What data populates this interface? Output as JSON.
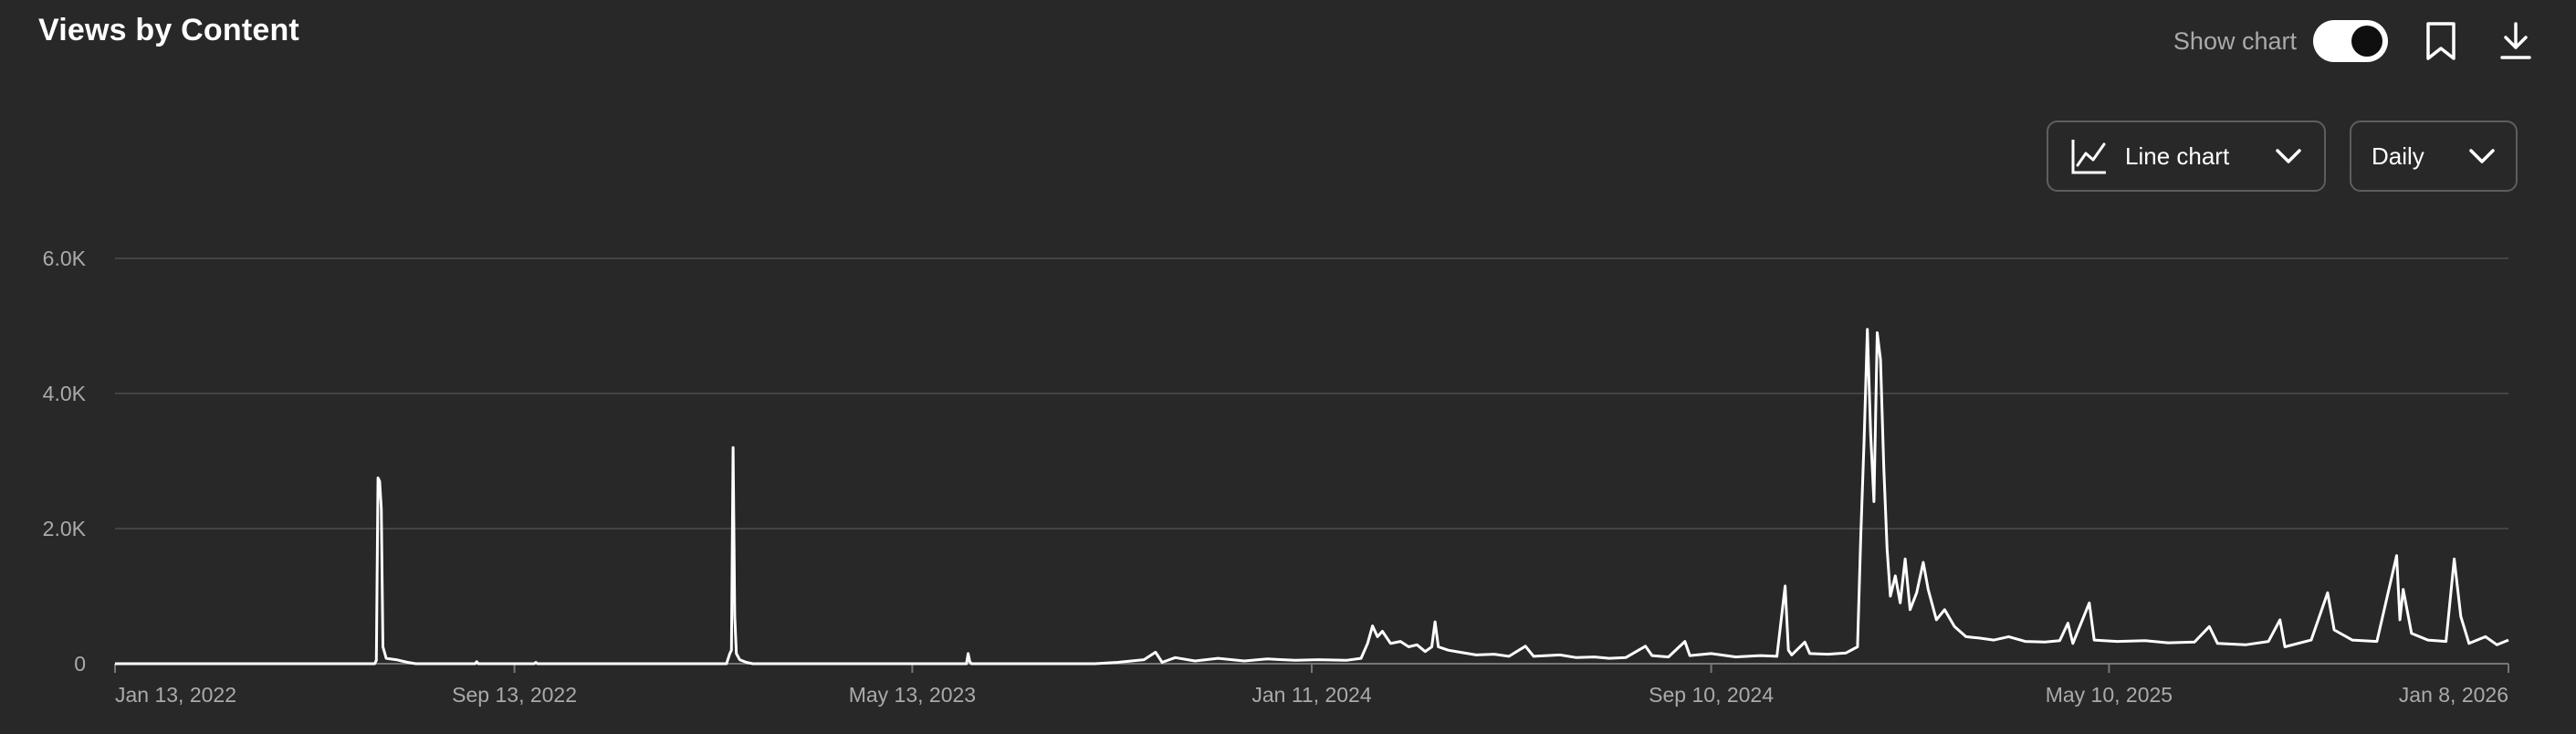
{
  "header": {
    "title": "Views by Content",
    "show_chart_label": "Show chart",
    "show_chart_on": true
  },
  "controls": {
    "chart_type": "Line chart",
    "period": "Daily"
  },
  "icons": {
    "bookmark": "bookmark-icon",
    "download": "download-icon",
    "line_chart": "line-chart-icon",
    "chevron": "chevron-down-icon"
  },
  "colors": {
    "background": "#282828",
    "line": "#ffffff",
    "grid": "#444444",
    "muted_text": "#aaaaaa"
  },
  "chart_data": {
    "type": "line",
    "title": "Views by Content",
    "xlabel": "",
    "ylabel": "",
    "x_range": [
      "2022-01-13",
      "2026-01-08"
    ],
    "ylim": [
      0,
      6000
    ],
    "y_ticks": [
      "6.0K",
      "4.0K",
      "2.0K",
      "0"
    ],
    "y_tick_values": [
      6000,
      4000,
      2000,
      0
    ],
    "x_tick_labels": [
      "Jan 13, 2022",
      "Sep 13, 2022",
      "May 13, 2023",
      "Jan 11, 2024",
      "Sep 10, 2024",
      "May 10, 2025",
      "Jan 8, 2026"
    ],
    "x_tick_dates": [
      "2022-01-13",
      "2022-09-13",
      "2023-05-13",
      "2024-01-11",
      "2024-09-10",
      "2025-05-10",
      "2026-01-08"
    ],
    "grid": true,
    "legend": "none",
    "series": [
      {
        "values": [
          [
            "2022-01-13",
            0
          ],
          [
            "2022-06-20",
            0
          ],
          [
            "2022-06-21",
            50
          ],
          [
            "2022-06-22",
            2750
          ],
          [
            "2022-06-23",
            2700
          ],
          [
            "2022-06-24",
            2300
          ],
          [
            "2022-06-25",
            250
          ],
          [
            "2022-06-27",
            80
          ],
          [
            "2022-07-03",
            60
          ],
          [
            "2022-07-10",
            20
          ],
          [
            "2022-07-15",
            0
          ],
          [
            "2022-08-20",
            0
          ],
          [
            "2022-08-21",
            30
          ],
          [
            "2022-08-22",
            0
          ],
          [
            "2022-09-25",
            0
          ],
          [
            "2022-09-26",
            20
          ],
          [
            "2022-09-27",
            0
          ],
          [
            "2023-01-20",
            0
          ],
          [
            "2023-01-22",
            150
          ],
          [
            "2023-01-23",
            200
          ],
          [
            "2023-01-24",
            3200
          ],
          [
            "2023-01-25",
            700
          ],
          [
            "2023-01-26",
            150
          ],
          [
            "2023-01-28",
            60
          ],
          [
            "2023-02-01",
            20
          ],
          [
            "2023-02-05",
            0
          ],
          [
            "2023-06-15",
            0
          ],
          [
            "2023-06-16",
            150
          ],
          [
            "2023-06-17",
            30
          ],
          [
            "2023-06-18",
            0
          ],
          [
            "2023-09-01",
            0
          ],
          [
            "2023-09-15",
            20
          ],
          [
            "2023-10-01",
            60
          ],
          [
            "2023-10-08",
            170
          ],
          [
            "2023-10-12",
            20
          ],
          [
            "2023-10-20",
            90
          ],
          [
            "2023-11-01",
            40
          ],
          [
            "2023-11-15",
            80
          ],
          [
            "2023-12-01",
            40
          ],
          [
            "2023-12-15",
            70
          ],
          [
            "2024-01-01",
            50
          ],
          [
            "2024-01-15",
            60
          ],
          [
            "2024-02-01",
            50
          ],
          [
            "2024-02-10",
            80
          ],
          [
            "2024-02-14",
            300
          ],
          [
            "2024-02-17",
            560
          ],
          [
            "2024-02-20",
            400
          ],
          [
            "2024-02-23",
            480
          ],
          [
            "2024-02-28",
            300
          ],
          [
            "2024-03-05",
            330
          ],
          [
            "2024-03-10",
            250
          ],
          [
            "2024-03-15",
            280
          ],
          [
            "2024-03-20",
            180
          ],
          [
            "2024-03-24",
            250
          ],
          [
            "2024-03-26",
            620
          ],
          [
            "2024-03-28",
            250
          ],
          [
            "2024-04-03",
            200
          ],
          [
            "2024-04-10",
            170
          ],
          [
            "2024-04-20",
            130
          ],
          [
            "2024-05-01",
            140
          ],
          [
            "2024-05-10",
            110
          ],
          [
            "2024-05-20",
            260
          ],
          [
            "2024-05-25",
            110
          ],
          [
            "2024-06-10",
            130
          ],
          [
            "2024-06-20",
            90
          ],
          [
            "2024-07-01",
            100
          ],
          [
            "2024-07-10",
            80
          ],
          [
            "2024-07-20",
            90
          ],
          [
            "2024-08-01",
            260
          ],
          [
            "2024-08-05",
            120
          ],
          [
            "2024-08-15",
            100
          ],
          [
            "2024-08-25",
            330
          ],
          [
            "2024-08-28",
            120
          ],
          [
            "2024-09-10",
            150
          ],
          [
            "2024-09-25",
            100
          ],
          [
            "2024-10-10",
            120
          ],
          [
            "2024-10-20",
            110
          ],
          [
            "2024-10-25",
            1150
          ],
          [
            "2024-10-27",
            200
          ],
          [
            "2024-10-29",
            130
          ],
          [
            "2024-11-06",
            320
          ],
          [
            "2024-11-09",
            150
          ],
          [
            "2024-11-20",
            140
          ],
          [
            "2024-12-01",
            160
          ],
          [
            "2024-12-08",
            250
          ],
          [
            "2024-12-10",
            1900
          ],
          [
            "2024-12-12",
            3300
          ],
          [
            "2024-12-14",
            4950
          ],
          [
            "2024-12-16",
            3400
          ],
          [
            "2024-12-18",
            2400
          ],
          [
            "2024-12-20",
            4900
          ],
          [
            "2024-12-22",
            4500
          ],
          [
            "2024-12-24",
            2900
          ],
          [
            "2024-12-26",
            1700
          ],
          [
            "2024-12-28",
            1000
          ],
          [
            "2024-12-31",
            1300
          ],
          [
            "2025-01-03",
            900
          ],
          [
            "2025-01-06",
            1550
          ],
          [
            "2025-01-09",
            800
          ],
          [
            "2025-01-13",
            1050
          ],
          [
            "2025-01-17",
            1500
          ],
          [
            "2025-01-20",
            1100
          ],
          [
            "2025-01-25",
            650
          ],
          [
            "2025-01-30",
            800
          ],
          [
            "2025-02-05",
            550
          ],
          [
            "2025-02-12",
            400
          ],
          [
            "2025-02-20",
            380
          ],
          [
            "2025-03-01",
            350
          ],
          [
            "2025-03-10",
            400
          ],
          [
            "2025-03-20",
            330
          ],
          [
            "2025-04-01",
            320
          ],
          [
            "2025-04-10",
            340
          ],
          [
            "2025-04-15",
            600
          ],
          [
            "2025-04-18",
            300
          ],
          [
            "2025-04-28",
            900
          ],
          [
            "2025-05-01",
            350
          ],
          [
            "2025-05-15",
            330
          ],
          [
            "2025-06-01",
            340
          ],
          [
            "2025-06-15",
            310
          ],
          [
            "2025-07-01",
            320
          ],
          [
            "2025-07-10",
            550
          ],
          [
            "2025-07-15",
            300
          ],
          [
            "2025-08-01",
            280
          ],
          [
            "2025-08-15",
            330
          ],
          [
            "2025-08-22",
            650
          ],
          [
            "2025-08-25",
            250
          ],
          [
            "2025-09-10",
            350
          ],
          [
            "2025-09-15",
            700
          ],
          [
            "2025-09-20",
            1050
          ],
          [
            "2025-09-24",
            500
          ],
          [
            "2025-10-05",
            350
          ],
          [
            "2025-10-20",
            330
          ],
          [
            "2025-11-01",
            1600
          ],
          [
            "2025-11-03",
            650
          ],
          [
            "2025-11-05",
            1100
          ],
          [
            "2025-11-10",
            450
          ],
          [
            "2025-11-20",
            350
          ],
          [
            "2025-12-01",
            330
          ],
          [
            "2025-12-06",
            1550
          ],
          [
            "2025-12-10",
            700
          ],
          [
            "2025-12-15",
            300
          ],
          [
            "2025-12-25",
            400
          ],
          [
            "2026-01-01",
            280
          ],
          [
            "2026-01-08",
            350
          ]
        ]
      }
    ]
  }
}
